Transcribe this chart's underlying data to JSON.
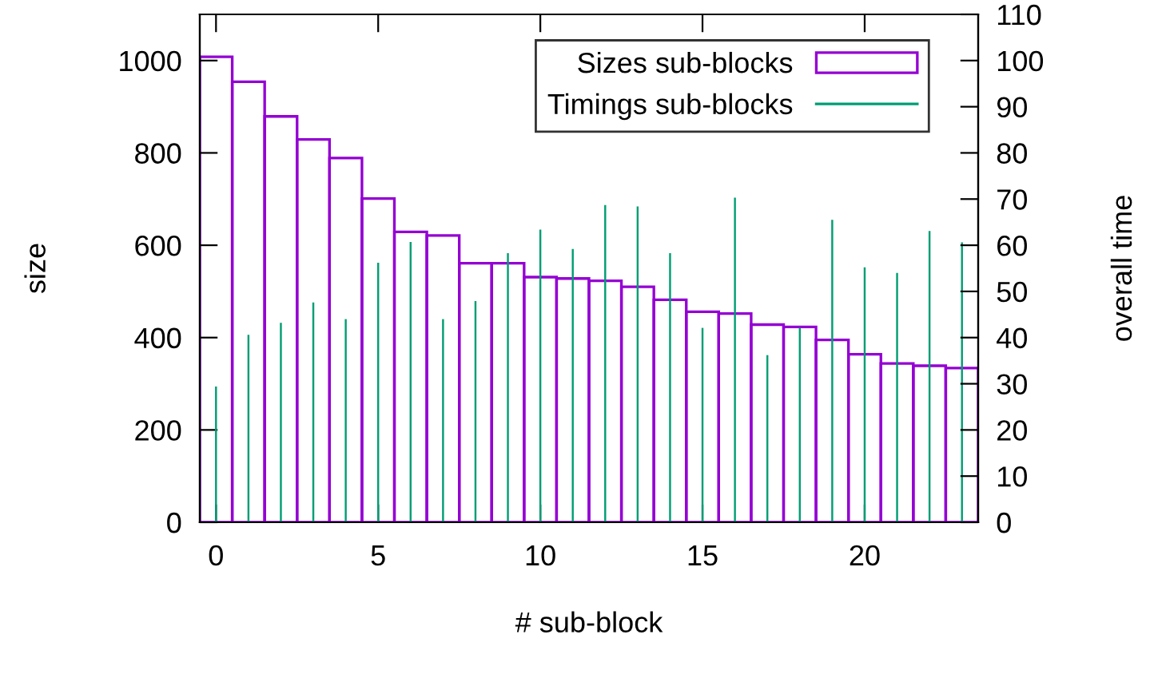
{
  "chart_data": {
    "type": "bar",
    "xlabel": "# sub-block",
    "ylabel": "size",
    "y2label": "overall time",
    "x": [
      0,
      1,
      2,
      3,
      4,
      5,
      6,
      7,
      8,
      9,
      10,
      11,
      12,
      13,
      14,
      15,
      16,
      17,
      18,
      19,
      20,
      21,
      22,
      23
    ],
    "xlim": [
      -0.5,
      23.5
    ],
    "xticks": [
      0,
      5,
      10,
      15,
      20
    ],
    "ylim": [
      0,
      1100
    ],
    "yticks": [
      0,
      200,
      400,
      600,
      800,
      1000
    ],
    "y2lim": [
      0,
      110
    ],
    "y2ticks": [
      0,
      10,
      20,
      30,
      40,
      50,
      60,
      70,
      80,
      90,
      100,
      110
    ],
    "legend": "top right",
    "grid": false,
    "series": [
      {
        "name": "Sizes sub-blocks",
        "color": "#9400d3",
        "values": [
          1008,
          954,
          879,
          829,
          789,
          701,
          629,
          621,
          561,
          561,
          531,
          528,
          523,
          510,
          482,
          456,
          452,
          428,
          423,
          395,
          364,
          344,
          339,
          334
        ]
      },
      {
        "name": "Timings sub-blocks",
        "type": "bar",
        "axis": "y2",
        "color": "#009e73",
        "values": [
          29.4,
          40.6,
          43.2,
          47.6,
          44,
          56.2,
          60.7,
          44,
          47.9,
          58.3,
          63.4,
          59.2,
          68.7,
          68.4,
          58.3,
          42.1,
          70.3,
          36.2,
          42.1,
          65.5,
          55.2,
          54,
          63.1,
          60.6
        ]
      }
    ]
  }
}
